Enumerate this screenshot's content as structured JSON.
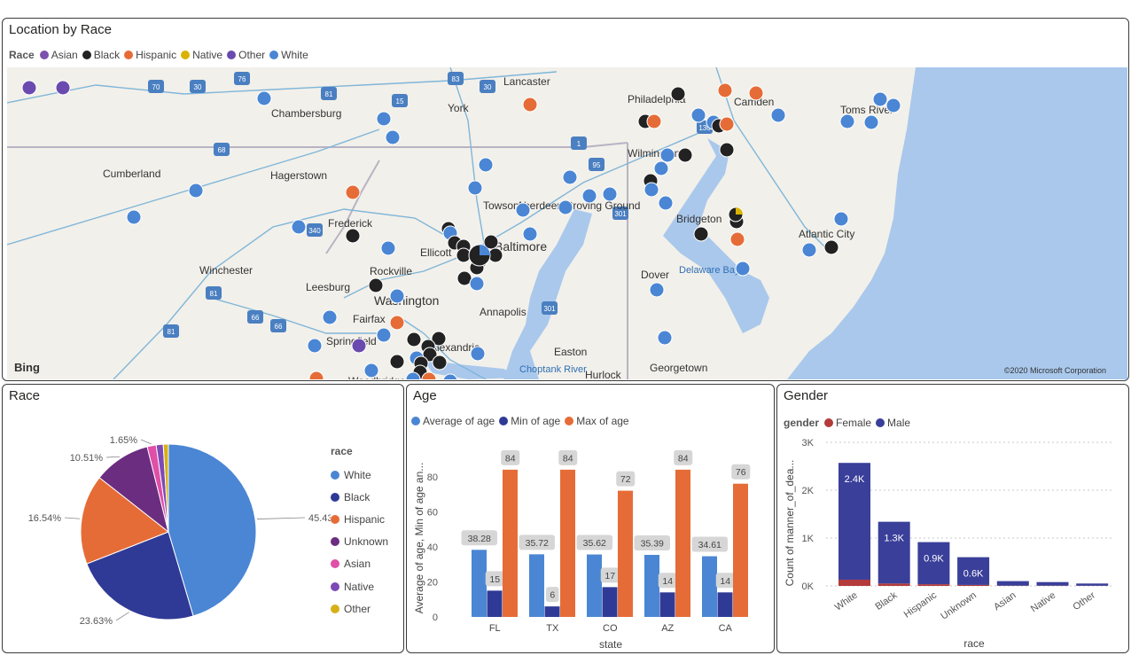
{
  "map_panel": {
    "title": "Location by Race",
    "legend_title": "Race",
    "legend": [
      {
        "label": "Asian",
        "color": "#7b52ae"
      },
      {
        "label": "Black",
        "color": "#222222"
      },
      {
        "label": "Hispanic",
        "color": "#e66c37"
      },
      {
        "label": "Native",
        "color": "#d9b300"
      },
      {
        "label": "Other",
        "color": "#6b4ab0"
      },
      {
        "label": "White",
        "color": "#4a86d4"
      }
    ],
    "places": [
      "Lancaster",
      "York",
      "Chambersburg",
      "Philadelphia",
      "Camden",
      "Toms River",
      "Wilmington",
      "Cumberland",
      "Hagerstown",
      "Towson",
      "Aberdeen Proving Ground",
      "Frederick",
      "Bridgeton",
      "Atlantic City",
      "Baltimore",
      "Ellicott",
      "Winchester",
      "Rockville",
      "Delaware Bay",
      "Dover",
      "Leesburg",
      "Annapolis",
      "Fairfax",
      "Washington",
      "Springfield",
      "Alexandria",
      "Easton",
      "Choptank River",
      "Hurlock",
      "Georgetown",
      "Woodbridge"
    ],
    "road_shields": [
      "70",
      "30",
      "76",
      "83",
      "30",
      "15",
      "81",
      "1",
      "130",
      "68",
      "95",
      "301",
      "340",
      "81",
      "66",
      "301",
      "81",
      "66"
    ],
    "attribution_logo": "Bing",
    "copyright": "©2020 Microsoft Corporation",
    "colors": {
      "water": "#a9c8ec",
      "land": "#f2f0ea"
    }
  },
  "race_panel": {
    "title": "Race",
    "legend_title": "race",
    "chart_data": {
      "type": "pie",
      "title": "Race",
      "categories": [
        "White",
        "Black",
        "Hispanic",
        "Unknown",
        "Asian",
        "Native",
        "Other"
      ],
      "values": [
        45.43,
        23.63,
        16.54,
        10.51,
        1.65,
        1.3,
        0.94
      ],
      "value_labels": [
        "45.43%",
        "23.63%",
        "16.54%",
        "10.51%",
        "1.65%",
        "",
        ""
      ],
      "colors": [
        "#4a86d4",
        "#2f3a96",
        "#e66c37",
        "#6b2d7f",
        "#e04fa8",
        "#7d4ab5",
        "#d6b019"
      ],
      "legend": "right"
    }
  },
  "age_panel": {
    "title": "Age",
    "chart_data": {
      "type": "bar",
      "title": "Age",
      "xlabel": "state",
      "ylabel": "Average of age, Min of age an...",
      "categories": [
        "FL",
        "TX",
        "CO",
        "AZ",
        "CA"
      ],
      "series": [
        {
          "name": "Average of age",
          "values": [
            38.28,
            35.72,
            35.62,
            35.39,
            34.61
          ],
          "labels": [
            "38.28",
            "35.72",
            "35.62",
            "35.39",
            "34.61"
          ],
          "color": "#4a86d4"
        },
        {
          "name": "Min of age",
          "values": [
            15,
            6,
            17,
            14,
            14
          ],
          "labels": [
            "15",
            "6",
            "17",
            "14",
            "14"
          ],
          "color": "#2f3a96"
        },
        {
          "name": "Max of age",
          "values": [
            84,
            84,
            72,
            84,
            76
          ],
          "labels": [
            "84",
            "84",
            "72",
            "84",
            "76"
          ],
          "color": "#e66c37"
        }
      ],
      "ylim": [
        0,
        90
      ],
      "yticks": [
        "0",
        "20",
        "40",
        "60",
        "80"
      ],
      "legend": "top-left",
      "grid": false
    }
  },
  "gender_panel": {
    "title": "Gender",
    "chart_data": {
      "type": "bar",
      "title": "Gender",
      "xlabel": "race",
      "ylabel": "Count of manner_of_dea...",
      "legend_title": "gender",
      "categories": [
        "White",
        "Black",
        "Hispanic",
        "Unknown",
        "Asian",
        "Native",
        "Other"
      ],
      "series": [
        {
          "name": "Female",
          "values": [
            130,
            50,
            35,
            20,
            5,
            5,
            3
          ],
          "color": "#b33b3b"
        },
        {
          "name": "Male",
          "values": [
            2440,
            1290,
            880,
            580,
            95,
            75,
            47
          ],
          "color": "#3a3f9a"
        }
      ],
      "total_labels": [
        "2.4K",
        "1.3K",
        "0.9K",
        "0.6K",
        "",
        "",
        ""
      ],
      "ylim": [
        0,
        3000
      ],
      "yticks": [
        "0K",
        "1K",
        "2K",
        "3K"
      ],
      "legend": "top-left",
      "grid": true
    }
  }
}
